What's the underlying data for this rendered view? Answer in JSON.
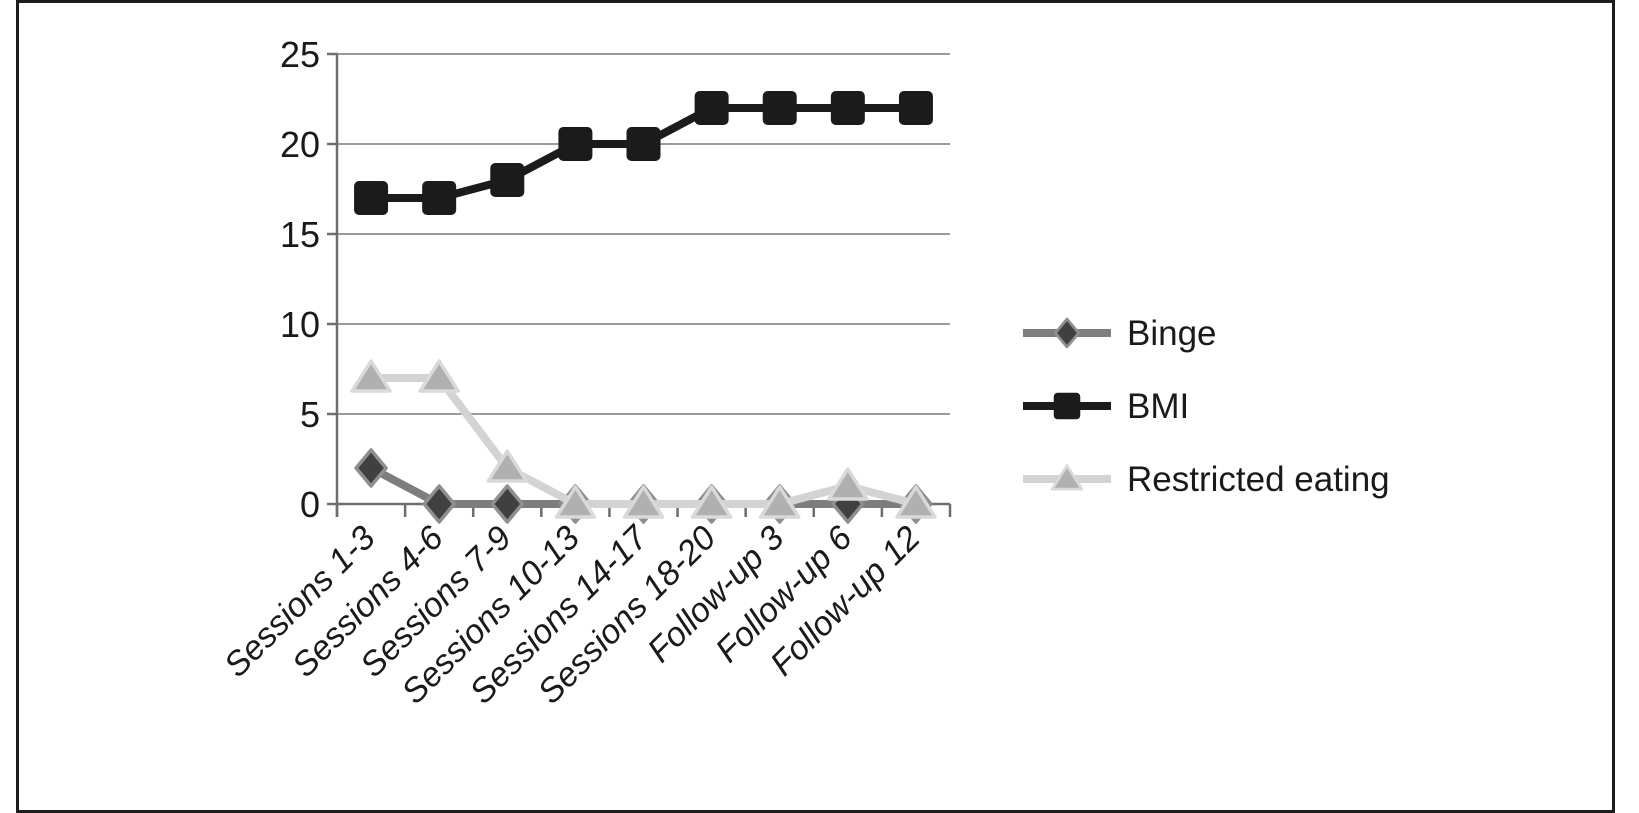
{
  "figure": {
    "background": "#ffffff",
    "frame_color": "#1d1d1d"
  },
  "chart_data": {
    "type": "line",
    "title": "",
    "xlabel": "",
    "ylabel": "",
    "categories": [
      "Sessions 1-3",
      "Sessions 4-6",
      "Sessions 7-9",
      "Sessions 10-13",
      "Sessions 14-17",
      "Sessions 18-20",
      "Follow-up 3",
      "Follow-up 6",
      "Follow-up 12"
    ],
    "series": [
      {
        "name": "Binge",
        "values": [
          2,
          0,
          0,
          0,
          0,
          0,
          0,
          0,
          0
        ],
        "line_color": "#7d7d7d",
        "marker": "diamond",
        "marker_fill": "#404040",
        "marker_stroke": "#8f8f8f"
      },
      {
        "name": "BMI",
        "values": [
          17,
          17,
          18,
          20,
          20,
          22,
          22,
          22,
          22
        ],
        "line_color": "#1b1b1b",
        "marker": "square",
        "marker_fill": "#1b1b1b",
        "marker_stroke": "#1b1b1b"
      },
      {
        "name": "Restricted eating",
        "values": [
          7,
          7,
          2,
          0,
          0,
          0,
          0,
          1,
          0
        ],
        "line_color": "#d3d3d3",
        "marker": "triangle",
        "marker_fill": "#b0b0b0",
        "marker_stroke": "#d9d9d9"
      }
    ],
    "yticks": [
      0,
      5,
      10,
      15,
      20,
      25
    ],
    "ylim": [
      0,
      25
    ],
    "grid": true,
    "gridline_color": "#9b9b9b",
    "axis_color": "#6e6e6e",
    "text_color": "#1a1a1a",
    "legend_position": "right",
    "legend_entries": [
      "Binge",
      "BMI",
      "Restricted eating"
    ]
  }
}
